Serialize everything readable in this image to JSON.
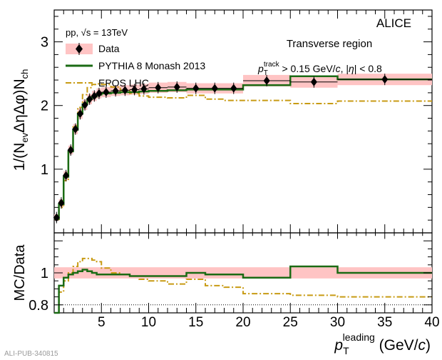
{
  "chart_data": [
    {
      "type": "line",
      "panel": "main",
      "ylabel": "1/(N_ev Δη Δφ) N_ch",
      "xlim": [
        0,
        40
      ],
      "ylim": [
        0,
        3.5
      ],
      "yticks": [
        1,
        2,
        3
      ],
      "experiment": "ALICE",
      "legend": {
        "header": "pp, √s = 13TeV",
        "entries": [
          "Data",
          "PYTHIA 8 Monash 2013",
          "EPOS LHC"
        ],
        "placement": "top-left"
      },
      "annotations": {
        "region": "Transverse region",
        "cut": "p_T^track > 0.15 GeV/c, |η| < 0.8"
      },
      "series": [
        {
          "name": "Data",
          "color": "#000000",
          "band_color": "#ffc4c4",
          "points": [
            {
              "x": 0.25,
              "y": 0.24,
              "err": 0.05
            },
            {
              "x": 0.75,
              "y": 0.47,
              "err": 0.06
            },
            {
              "x": 1.25,
              "y": 0.9,
              "err": 0.07
            },
            {
              "x": 1.75,
              "y": 1.3,
              "err": 0.07
            },
            {
              "x": 2.25,
              "y": 1.63,
              "err": 0.08
            },
            {
              "x": 2.75,
              "y": 1.87,
              "err": 0.08
            },
            {
              "x": 3.25,
              "y": 2.01,
              "err": 0.08
            },
            {
              "x": 3.75,
              "y": 2.1,
              "err": 0.08
            },
            {
              "x": 4.25,
              "y": 2.15,
              "err": 0.08
            },
            {
              "x": 4.75,
              "y": 2.19,
              "err": 0.08
            },
            {
              "x": 5.5,
              "y": 2.21,
              "err": 0.08
            },
            {
              "x": 6.5,
              "y": 2.23,
              "err": 0.08
            },
            {
              "x": 7.5,
              "y": 2.24,
              "err": 0.08
            },
            {
              "x": 8.5,
              "y": 2.25,
              "err": 0.08
            },
            {
              "x": 9.5,
              "y": 2.26,
              "err": 0.08
            },
            {
              "x": 11,
              "y": 2.28,
              "err": 0.08
            },
            {
              "x": 13,
              "y": 2.29,
              "err": 0.08
            },
            {
              "x": 15,
              "y": 2.27,
              "err": 0.08
            },
            {
              "x": 17,
              "y": 2.27,
              "err": 0.08
            },
            {
              "x": 19,
              "y": 2.27,
              "err": 0.08
            },
            {
              "x": 22.5,
              "y": 2.39,
              "err": 0.09
            },
            {
              "x": 27.5,
              "y": 2.37,
              "err": 0.09
            },
            {
              "x": 35,
              "y": 2.41,
              "err": 0.09
            }
          ]
        },
        {
          "name": "PYTHIA 8 Monash 2013",
          "color": "#1b6b14",
          "edges": [
            0,
            0.5,
            1,
            1.5,
            2,
            2.5,
            3,
            3.5,
            4,
            4.5,
            5,
            6,
            7,
            8,
            9,
            10,
            12,
            14,
            16,
            18,
            20,
            25,
            30,
            40
          ],
          "values": [
            0.22,
            0.45,
            0.88,
            1.28,
            1.62,
            1.87,
            2.02,
            2.1,
            2.14,
            2.17,
            2.19,
            2.2,
            2.21,
            2.21,
            2.22,
            2.23,
            2.24,
            2.25,
            2.25,
            2.25,
            2.32,
            2.46,
            2.41
          ]
        },
        {
          "name": "EPOS LHC",
          "color": "#c89b14",
          "edges": [
            0,
            0.5,
            1,
            1.5,
            2,
            2.5,
            3,
            3.5,
            4,
            4.5,
            5,
            6,
            7,
            8,
            9,
            10,
            12,
            14,
            16,
            18,
            20,
            25,
            30,
            40
          ],
          "values": [
            0.21,
            0.4,
            0.82,
            1.27,
            1.68,
            1.97,
            2.17,
            2.28,
            2.33,
            2.34,
            2.33,
            2.29,
            2.24,
            2.19,
            2.15,
            2.13,
            2.12,
            2.16,
            2.1,
            2.08,
            2.08,
            2.03,
            2.07
          ]
        }
      ]
    },
    {
      "type": "line",
      "panel": "ratio",
      "ylabel": "MC/Data",
      "xlabel": "p_T^leading (GeV/c)",
      "xlim": [
        0,
        40
      ],
      "ylim": [
        0.75,
        1.25
      ],
      "yticks": [
        0.8,
        1
      ],
      "xticks": [
        5,
        10,
        15,
        20,
        25,
        30,
        35,
        40
      ],
      "reference_line": 0.8,
      "band": {
        "lower": 0.965,
        "upper": 1.035
      },
      "series": [
        {
          "name": "PYTHIA 8 Monash 2013",
          "edges": [
            0,
            0.5,
            1,
            1.5,
            2,
            2.5,
            3,
            3.5,
            4,
            4.5,
            5,
            6,
            7,
            8,
            9,
            10,
            12,
            14,
            16,
            18,
            20,
            25,
            30,
            40
          ],
          "values": [
            0.75,
            0.92,
            0.97,
            0.99,
            1.0,
            1.01,
            1.02,
            1.01,
            1.0,
            0.99,
            0.99,
            0.99,
            0.99,
            0.98,
            0.98,
            0.98,
            0.98,
            1.0,
            0.99,
            0.99,
            0.97,
            1.04,
            1.0
          ]
        },
        {
          "name": "EPOS LHC",
          "edges": [
            0,
            0.5,
            1,
            1.5,
            2,
            2.5,
            3,
            3.5,
            4,
            4.5,
            5,
            6,
            7,
            8,
            9,
            10,
            12,
            14,
            16,
            18,
            20,
            25,
            30,
            40
          ],
          "values": [
            0.75,
            0.88,
            0.95,
            1.0,
            1.04,
            1.07,
            1.09,
            1.09,
            1.08,
            1.07,
            1.03,
            1.0,
            0.99,
            0.98,
            0.96,
            0.95,
            0.93,
            0.96,
            0.92,
            0.91,
            0.87,
            0.86,
            0.85
          ]
        }
      ]
    }
  ],
  "watermark": "ALI-PUB-340815"
}
